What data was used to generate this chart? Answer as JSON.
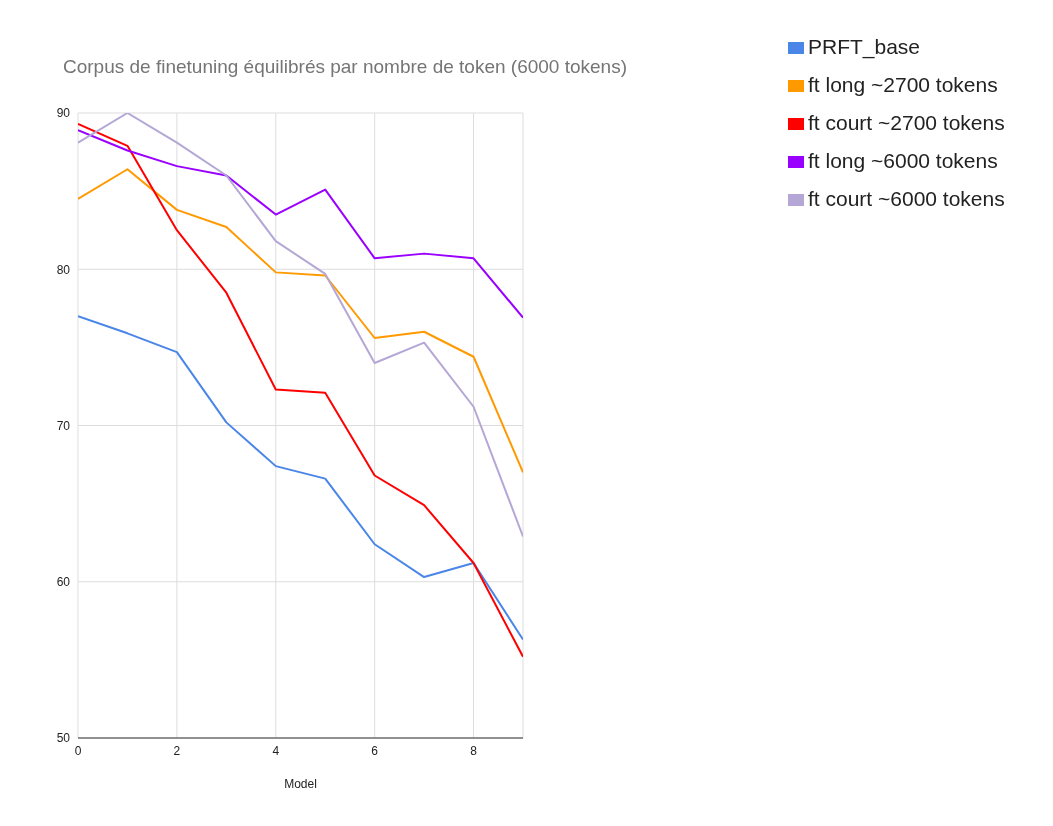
{
  "chart_data": {
    "type": "line",
    "title": "Corpus de finetuning équilibrés par nombre de token (6000 tokens)",
    "xlabel": "Model",
    "x": [
      0,
      1,
      2,
      3,
      4,
      5,
      6,
      7,
      8,
      9
    ],
    "xlim": [
      0,
      9
    ],
    "xticks": [
      0,
      2,
      4,
      6,
      8
    ],
    "ylim": [
      50,
      90
    ],
    "yticks": [
      50,
      60,
      70,
      80,
      90
    ],
    "grid": true,
    "legend": "top right",
    "marker": "none",
    "line_style": "solid",
    "series": [
      {
        "name": "PRFT_base",
        "color": "#4a86e8",
        "values": [
          77.0,
          75.9,
          74.7,
          70.2,
          67.4,
          66.6,
          62.4,
          60.3,
          61.2,
          56.3
        ]
      },
      {
        "name": "ft long ~2700 tokens",
        "color": "#ff9900",
        "values": [
          84.5,
          86.4,
          83.8,
          82.7,
          79.8,
          79.6,
          75.6,
          76.0,
          74.4,
          67.0
        ]
      },
      {
        "name": "ft court ~2700 tokens",
        "color": "#ff0000",
        "values": [
          89.3,
          87.9,
          82.5,
          78.5,
          72.3,
          72.1,
          66.8,
          64.9,
          61.2,
          55.2
        ]
      },
      {
        "name": "ft long ~6000 tokens",
        "color": "#9900ff",
        "values": [
          88.9,
          87.6,
          86.6,
          86.0,
          83.5,
          85.1,
          80.7,
          81.0,
          80.7,
          76.9
        ]
      },
      {
        "name": "ft court ~6000 tokens",
        "color": "#b4a7d6",
        "values": [
          88.1,
          90.0,
          88.1,
          86.0,
          81.8,
          79.7,
          74.0,
          75.3,
          71.2,
          62.9
        ]
      }
    ]
  }
}
